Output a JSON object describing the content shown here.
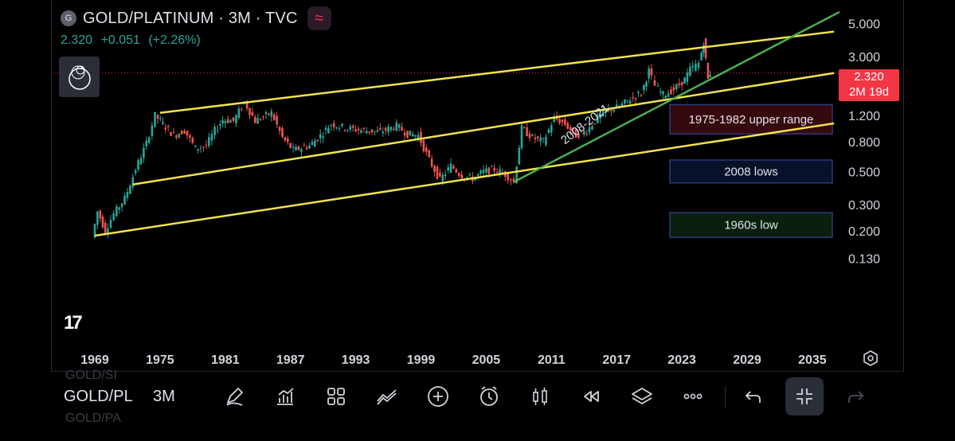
{
  "header": {
    "badge": "G",
    "title": "GOLD/PLATINUM · 3M · TVC",
    "last": "2.320",
    "change": "+0.051",
    "change_pct": "(+2.26%)"
  },
  "price_tag": {
    "price": "2.320",
    "countdown": "2M 19d"
  },
  "colors": {
    "up": "#26a69a",
    "down": "#ef5350",
    "channel": "#f2e44b",
    "trend": "#4caf50",
    "tag": "#f23645"
  },
  "annotations": {
    "trend_label": "2008-2021",
    "zone_upper": "1975-1982 upper range",
    "zone_2008": "2008 lows",
    "zone_1960s": "1960s low"
  },
  "chart_data": {
    "type": "candlestick",
    "symbol": "GOLD/PLATINUM",
    "interval": "3M",
    "source": "TVC",
    "scale": "log",
    "ylim": [
      0.11,
      6.0
    ],
    "xlim": [
      1967.5,
      2038.0
    ],
    "y_ticks": [
      "5.000",
      "3.000",
      "1.200",
      "0.800",
      "0.500",
      "0.300",
      "0.200",
      "0.130"
    ],
    "x_ticks": [
      "1969",
      "1975",
      "1981",
      "1987",
      "1993",
      "1999",
      "2005",
      "2011",
      "2017",
      "2023",
      "2029",
      "2035"
    ],
    "trend_points": [
      [
        1969.0,
        0.18
      ],
      [
        1969.5,
        0.27
      ],
      [
        1970.2,
        0.2
      ],
      [
        1971.0,
        0.26
      ],
      [
        1972.0,
        0.33
      ],
      [
        1973.0,
        0.52
      ],
      [
        1974.0,
        0.78
      ],
      [
        1974.8,
        1.2
      ],
      [
        1975.5,
        1.05
      ],
      [
        1976.5,
        0.88
      ],
      [
        1977.5,
        0.95
      ],
      [
        1978.5,
        0.72
      ],
      [
        1979.5,
        0.75
      ],
      [
        1980.3,
        0.95
      ],
      [
        1981.0,
        1.12
      ],
      [
        1982.0,
        1.1
      ],
      [
        1983.0,
        1.48
      ],
      [
        1984.0,
        1.1
      ],
      [
        1985.5,
        1.25
      ],
      [
        1986.5,
        0.85
      ],
      [
        1987.5,
        0.7
      ],
      [
        1989.0,
        0.75
      ],
      [
        1990.0,
        0.88
      ],
      [
        1991.0,
        1.05
      ],
      [
        1992.5,
        0.98
      ],
      [
        1994.0,
        0.95
      ],
      [
        1995.5,
        0.93
      ],
      [
        1997.0,
        1.02
      ],
      [
        1998.0,
        0.9
      ],
      [
        1999.0,
        0.88
      ],
      [
        2000.0,
        0.6
      ],
      [
        2001.0,
        0.44
      ],
      [
        2002.0,
        0.55
      ],
      [
        2003.0,
        0.47
      ],
      [
        2004.0,
        0.45
      ],
      [
        2005.0,
        0.5
      ],
      [
        2006.0,
        0.52
      ],
      [
        2007.0,
        0.48
      ],
      [
        2007.8,
        0.43
      ],
      [
        2008.5,
        0.98
      ],
      [
        2009.5,
        0.85
      ],
      [
        2010.5,
        0.8
      ],
      [
        2011.5,
        1.15
      ],
      [
        2012.5,
        1.05
      ],
      [
        2013.5,
        0.88
      ],
      [
        2014.5,
        0.95
      ],
      [
        2015.5,
        1.15
      ],
      [
        2016.5,
        1.3
      ],
      [
        2017.5,
        1.38
      ],
      [
        2018.5,
        1.55
      ],
      [
        2019.5,
        1.7
      ],
      [
        2020.2,
        2.4
      ],
      [
        2020.8,
        1.9
      ],
      [
        2021.5,
        1.65
      ],
      [
        2022.5,
        1.8
      ],
      [
        2023.5,
        2.1
      ],
      [
        2024.0,
        2.45
      ],
      [
        2024.8,
        2.7
      ],
      [
        2025.2,
        3.8
      ],
      [
        2025.6,
        2.1
      ],
      [
        2025.9,
        2.32
      ]
    ],
    "channel_lines": [
      {
        "name": "upper",
        "from": [
          1975.0,
          1.25
        ],
        "to": [
          2037.0,
          4.42
        ]
      },
      {
        "name": "middle",
        "from": [
          1972.5,
          0.41
        ],
        "to": [
          2037.0,
          2.32
        ]
      },
      {
        "name": "lower",
        "from": [
          1969.0,
          0.185
        ],
        "to": [
          2037.0,
          1.06
        ]
      }
    ],
    "trend_line": {
      "label": "2008-2021",
      "from": [
        2007.5,
        0.425
      ],
      "to": [
        2037.5,
        6.0
      ]
    },
    "zones": [
      {
        "label": "1975-1982 upper range",
        "y_range": [
          0.9,
          1.42
        ]
      },
      {
        "label": "2008 lows",
        "y_range": [
          0.42,
          0.6
        ]
      },
      {
        "label": "1960s low",
        "y_range": [
          0.18,
          0.265
        ]
      }
    ],
    "last_price": 2.32
  },
  "toolbar": {
    "symbol": "GOLD/PL",
    "symbol_ghost": "GOLD/SI",
    "symbol_ghost2": "GOLD/PA",
    "timeframe": "3M"
  }
}
